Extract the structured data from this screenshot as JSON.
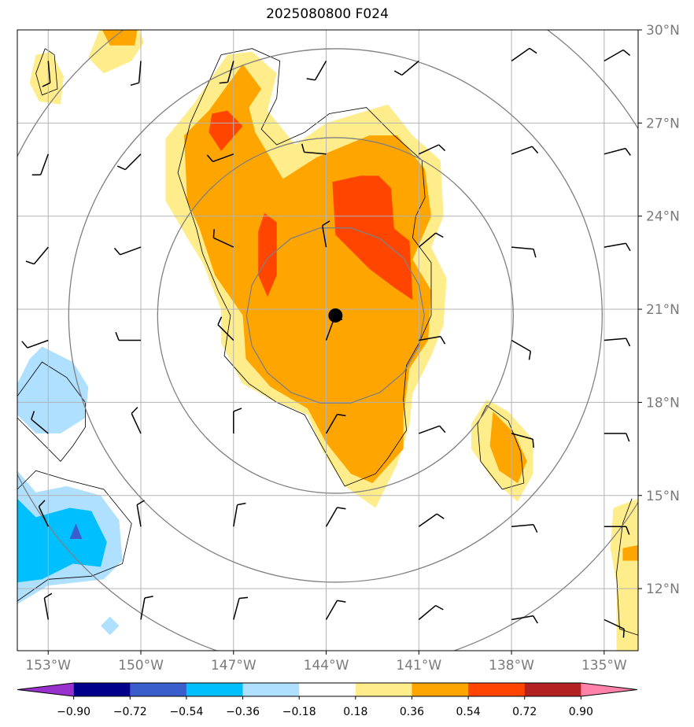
{
  "chart_data": {
    "type": "contour-map",
    "title": "2025080800 F024",
    "xlim": [
      -154,
      -133.9
    ],
    "ylim": [
      10,
      30
    ],
    "x_ticks": [
      -153,
      -150,
      -147,
      -144,
      -141,
      -138,
      -135
    ],
    "x_tick_labels": [
      "153°W",
      "150°W",
      "147°W",
      "144°W",
      "141°W",
      "138°W",
      "135°W"
    ],
    "y_ticks": [
      12,
      15,
      18,
      21,
      24,
      27,
      30
    ],
    "y_tick_labels": [
      "12°N",
      "15°N",
      "18°N",
      "21°N",
      "24°N",
      "27°N",
      "30°N"
    ],
    "grid": true,
    "storm_center": {
      "lon": -143.7,
      "lat": 20.8
    },
    "range_rings": {
      "center": {
        "lon": -143.7,
        "lat": 20.8
      },
      "count": 4
    },
    "colorbar": {
      "levels": [
        -0.9,
        -0.72,
        -0.54,
        -0.36,
        -0.18,
        0.18,
        0.36,
        0.54,
        0.72,
        0.9
      ],
      "tick_labels": [
        "−0.90",
        "−0.72",
        "−0.54",
        "−0.36",
        "−0.18",
        "0.18",
        "0.36",
        "0.54",
        "0.72",
        "0.90"
      ],
      "colors": [
        "#9932cc",
        "#00008b",
        "#3a5fcd",
        "#00bfff",
        "#b0e0ff",
        "#ffffff",
        "#ffec8b",
        "#ffa500",
        "#ff4500",
        "#b22222",
        "#ff82ab"
      ],
      "extend": "both"
    },
    "filled_regions": [
      {
        "level": 0.18,
        "color": "#ffec8b",
        "lonlat": [
          [
            -147.2,
            29.2
          ],
          [
            -146.4,
            29.3
          ],
          [
            -145.6,
            28.6
          ],
          [
            -145.9,
            27.4
          ],
          [
            -145,
            26.3
          ],
          [
            -144,
            27
          ],
          [
            -142,
            27.6
          ],
          [
            -141.2,
            26.6
          ],
          [
            -140.3,
            25.8
          ],
          [
            -140.2,
            24
          ],
          [
            -140.6,
            23
          ],
          [
            -140.1,
            22
          ],
          [
            -140.2,
            20.5
          ],
          [
            -140.6,
            19.5
          ],
          [
            -141.2,
            18.3
          ],
          [
            -141.3,
            17.3
          ],
          [
            -141.7,
            16
          ],
          [
            -142.4,
            14.6
          ],
          [
            -143.4,
            15.3
          ],
          [
            -144.1,
            16.4
          ],
          [
            -144.6,
            17.6
          ],
          [
            -145.8,
            18.1
          ],
          [
            -146.7,
            18.6
          ],
          [
            -147.4,
            19.9
          ],
          [
            -147.4,
            21
          ],
          [
            -148,
            22.5
          ],
          [
            -148.5,
            23.3
          ],
          [
            -149.2,
            24.5
          ],
          [
            -149.2,
            26.5
          ],
          [
            -148.3,
            27.6
          ],
          [
            -147.2,
            29.2
          ]
        ]
      },
      {
        "level": 0.36,
        "color": "#ffa500",
        "lonlat": [
          [
            -146.7,
            28.9
          ],
          [
            -146.1,
            28.1
          ],
          [
            -146.5,
            27.5
          ],
          [
            -146.3,
            26.7
          ],
          [
            -145.4,
            25.2
          ],
          [
            -144.3,
            25.9
          ],
          [
            -142.6,
            26.6
          ],
          [
            -141.7,
            26.6
          ],
          [
            -140.8,
            25.5
          ],
          [
            -140.6,
            24
          ],
          [
            -141.2,
            22.6
          ],
          [
            -140.6,
            21.6
          ],
          [
            -140.7,
            20
          ],
          [
            -141.3,
            19.1
          ],
          [
            -141.5,
            17.6
          ],
          [
            -141.5,
            16.5
          ],
          [
            -142.5,
            15.4
          ],
          [
            -143.2,
            15.7
          ],
          [
            -144,
            16.7
          ],
          [
            -144.6,
            17.8
          ],
          [
            -145.8,
            18.5
          ],
          [
            -146.6,
            19.4
          ],
          [
            -146.7,
            20.8
          ],
          [
            -147.6,
            22.1
          ],
          [
            -148.1,
            23.6
          ],
          [
            -148.5,
            24.5
          ],
          [
            -148.6,
            26.6
          ],
          [
            -147.8,
            27.4
          ],
          [
            -146.7,
            28.9
          ]
        ]
      },
      {
        "level": 0.54,
        "color": "#ff4500",
        "lonlat": [
          [
            -143.8,
            25.1
          ],
          [
            -142.9,
            25.3
          ],
          [
            -142.3,
            25.3
          ],
          [
            -141.9,
            24.9
          ],
          [
            -141.8,
            23.6
          ],
          [
            -141.3,
            23.2
          ],
          [
            -141.2,
            21.3
          ],
          [
            -141.8,
            21.7
          ],
          [
            -142.6,
            22.3
          ],
          [
            -143.7,
            23.4
          ],
          [
            -143.8,
            25.1
          ]
        ]
      },
      {
        "level": 0.54,
        "color": "#ff4500",
        "lonlat": [
          [
            -147.2,
            27.4
          ],
          [
            -146.7,
            26.9
          ],
          [
            -147.4,
            26.1
          ],
          [
            -147.8,
            26.7
          ],
          [
            -147.7,
            27.3
          ],
          [
            -147.2,
            27.4
          ]
        ]
      },
      {
        "level": 0.54,
        "color": "#ff4500",
        "lonlat": [
          [
            -146,
            24.1
          ],
          [
            -145.6,
            23.8
          ],
          [
            -145.6,
            22.1
          ],
          [
            -145.9,
            21.4
          ],
          [
            -146.2,
            22.1
          ],
          [
            -146.2,
            23.5
          ],
          [
            -146,
            24.1
          ]
        ]
      },
      {
        "level": 0.18,
        "color": "#ffec8b",
        "lonlat": [
          [
            -151.3,
            30.1
          ],
          [
            -150.1,
            30.1
          ],
          [
            -149.9,
            29.6
          ],
          [
            -150.3,
            29
          ],
          [
            -151.2,
            28.6
          ],
          [
            -151.7,
            29.1
          ],
          [
            -151.3,
            30.1
          ]
        ]
      },
      {
        "level": 0.36,
        "color": "#ffa500",
        "lonlat": [
          [
            -151.3,
            30.1
          ],
          [
            -150.1,
            30.1
          ],
          [
            -150.2,
            29.5
          ],
          [
            -151,
            29.5
          ],
          [
            -151.3,
            30.1
          ]
        ]
      },
      {
        "level": 0.18,
        "color": "#ffec8b",
        "lonlat": [
          [
            -153.4,
            29.2
          ],
          [
            -152.9,
            29.3
          ],
          [
            -152.5,
            28.5
          ],
          [
            -152.6,
            27.6
          ],
          [
            -153.3,
            27.7
          ],
          [
            -153.6,
            28.3
          ],
          [
            -153.4,
            29.2
          ]
        ]
      },
      {
        "level": 0.18,
        "color": "#ffec8b",
        "lonlat": [
          [
            -138.8,
            18.1
          ],
          [
            -138.1,
            17.7
          ],
          [
            -137.3,
            16.8
          ],
          [
            -137.3,
            15.7
          ],
          [
            -137.8,
            14.8
          ],
          [
            -138.6,
            15.5
          ],
          [
            -139.3,
            16.5
          ],
          [
            -139.3,
            17.3
          ],
          [
            -138.8,
            18.1
          ]
        ]
      },
      {
        "level": 0.36,
        "color": "#ffa500",
        "lonlat": [
          [
            -138.6,
            17.7
          ],
          [
            -137.9,
            17
          ],
          [
            -137.5,
            16.1
          ],
          [
            -137.8,
            15.4
          ],
          [
            -138.4,
            15.8
          ],
          [
            -138.7,
            16.6
          ],
          [
            -138.6,
            17.7
          ]
        ]
      },
      {
        "level": 0.18,
        "color": "#ffec8b",
        "lonlat": [
          [
            -134.7,
            14.6
          ],
          [
            -133.9,
            14.9
          ],
          [
            -133.9,
            10
          ],
          [
            -134.6,
            10
          ],
          [
            -134.6,
            12.2
          ],
          [
            -134.8,
            13.3
          ],
          [
            -134.7,
            14.6
          ]
        ]
      },
      {
        "level": 0.36,
        "color": "#ffa500",
        "lonlat": [
          [
            -134.4,
            13.3
          ],
          [
            -133.9,
            13.4
          ],
          [
            -133.9,
            12.9
          ],
          [
            -134.4,
            12.9
          ],
          [
            -134.4,
            13.3
          ]
        ]
      },
      {
        "level": -0.18,
        "color": "#b0e0ff",
        "lonlat": [
          [
            -153.6,
            19.4
          ],
          [
            -153.2,
            19.8
          ],
          [
            -152.2,
            19.3
          ],
          [
            -151.7,
            18.5
          ],
          [
            -151.8,
            17.5
          ],
          [
            -152.6,
            17
          ],
          [
            -153.4,
            17
          ],
          [
            -154,
            17.6
          ],
          [
            -154,
            18.6
          ],
          [
            -153.6,
            19.4
          ]
        ]
      },
      {
        "level": -0.18,
        "color": "#b0e0ff",
        "lonlat": [
          [
            -154,
            15.8
          ],
          [
            -153.4,
            15.1
          ],
          [
            -152.4,
            15.3
          ],
          [
            -151.3,
            15
          ],
          [
            -150.7,
            14.2
          ],
          [
            -150.6,
            12.9
          ],
          [
            -151.2,
            12.3
          ],
          [
            -152.1,
            12.2
          ],
          [
            -153,
            12.1
          ],
          [
            -154,
            11.5
          ],
          [
            -154,
            15.8
          ]
        ]
      },
      {
        "level": -0.36,
        "color": "#00bfff",
        "lonlat": [
          [
            -154,
            14.9
          ],
          [
            -153.4,
            14.3
          ],
          [
            -152.3,
            14.6
          ],
          [
            -151.6,
            14.5
          ],
          [
            -151.1,
            13.5
          ],
          [
            -151.3,
            12.7
          ],
          [
            -152.2,
            12.8
          ],
          [
            -153.2,
            12.3
          ],
          [
            -154,
            12.2
          ],
          [
            -154,
            14.9
          ]
        ]
      },
      {
        "level": -0.54,
        "color": "#3a5fcd",
        "lonlat": [
          [
            -152.1,
            14.1
          ],
          [
            -151.9,
            13.6
          ],
          [
            -152.3,
            13.6
          ],
          [
            -152.1,
            14.1
          ]
        ]
      },
      {
        "level": -0.18,
        "color": "#b0e0ff",
        "lonlat": [
          [
            -151,
            11.1
          ],
          [
            -150.7,
            10.8
          ],
          [
            -151,
            10.5
          ],
          [
            -151.3,
            10.8
          ],
          [
            -151,
            11.1
          ]
        ]
      }
    ],
    "contour_lines": [
      {
        "level": 0.18,
        "lonlat": [
          [
            -147.4,
            29.2
          ],
          [
            -146.4,
            29.4
          ],
          [
            -145.5,
            29
          ],
          [
            -145.6,
            27.8
          ],
          [
            -146.1,
            26.8
          ],
          [
            -145.6,
            26.3
          ],
          [
            -144.7,
            26.7
          ],
          [
            -143.9,
            27.3
          ],
          [
            -142.7,
            27.5
          ],
          [
            -141.8,
            26.6
          ],
          [
            -140.9,
            25.8
          ],
          [
            -140.8,
            24.6
          ],
          [
            -141.1,
            24
          ],
          [
            -141.2,
            23.3
          ],
          [
            -140.6,
            22.5
          ],
          [
            -140.6,
            20.8
          ],
          [
            -141,
            19.9
          ],
          [
            -141.4,
            19.2
          ],
          [
            -141.5,
            18.1
          ],
          [
            -141.4,
            17.1
          ],
          [
            -142,
            16.2
          ],
          [
            -142.4,
            15.7
          ],
          [
            -143.4,
            15.3
          ],
          [
            -144.2,
            16.7
          ],
          [
            -144.7,
            17.6
          ],
          [
            -145.6,
            18
          ],
          [
            -146.5,
            18.6
          ],
          [
            -147.3,
            19.5
          ],
          [
            -147.1,
            20.8
          ],
          [
            -147.5,
            21.6
          ],
          [
            -148,
            22.8
          ],
          [
            -148.2,
            23.6
          ],
          [
            -148.8,
            25.4
          ],
          [
            -148.4,
            27
          ],
          [
            -147.4,
            29.2
          ]
        ]
      },
      {
        "level": -0.18,
        "lonlat": [
          [
            -154,
            18.2
          ],
          [
            -153.2,
            19.3
          ],
          [
            -152.4,
            18.8
          ],
          [
            -151.8,
            18
          ],
          [
            -151.8,
            17.2
          ],
          [
            -152.2,
            16.6
          ],
          [
            -152.6,
            16.1
          ],
          [
            -153.3,
            16.8
          ],
          [
            -154,
            17.5
          ]
        ]
      },
      {
        "level": -0.18,
        "lonlat": [
          [
            -154,
            15.2
          ],
          [
            -153.4,
            15.8
          ],
          [
            -152.4,
            15.5
          ],
          [
            -151.2,
            15.2
          ],
          [
            -150.3,
            14.1
          ],
          [
            -150.6,
            12.8
          ],
          [
            -151.6,
            12.4
          ],
          [
            -153,
            12.3
          ],
          [
            -154,
            11.6
          ]
        ]
      },
      {
        "level": 0.18,
        "lonlat": [
          [
            -138.8,
            17.9
          ],
          [
            -138.1,
            17.4
          ],
          [
            -137.7,
            16.4
          ],
          [
            -137.6,
            15.4
          ],
          [
            -138.3,
            15.2
          ],
          [
            -139,
            16.1
          ],
          [
            -139.1,
            17.3
          ],
          [
            -138.8,
            17.9
          ]
        ]
      },
      {
        "level": 0.18,
        "lonlat": [
          [
            -134.1,
            14.9
          ],
          [
            -134.4,
            14.1
          ],
          [
            -134.6,
            12.5
          ],
          [
            -134.5,
            10.7
          ],
          [
            -133.9,
            10.5
          ]
        ]
      },
      {
        "level": 0.18,
        "lonlat": [
          [
            -153.1,
            29.4
          ],
          [
            -152.8,
            29.2
          ],
          [
            -152.7,
            28.1
          ],
          [
            -153.2,
            27.9
          ],
          [
            -153.4,
            28.6
          ],
          [
            -153.1,
            29.4
          ]
        ]
      }
    ],
    "wind_barbs": {
      "lons": [
        -153,
        -150,
        -147,
        -144,
        -141,
        -138,
        -135
      ],
      "lats": [
        11,
        14,
        17,
        20,
        23,
        26,
        29
      ],
      "angles_deg": [
        [
          100,
          80,
          75,
          60,
          40,
          10,
          335
        ],
        [
          115,
          100,
          80,
          60,
          35,
          5,
          0
        ],
        [
          140,
          115,
          90,
          60,
          20,
          345,
          0
        ],
        [
          200,
          180,
          135,
          70,
          10,
          330,
          5
        ],
        [
          230,
          200,
          155,
          100,
          40,
          355,
          10
        ],
        [
          250,
          225,
          200,
          175,
          25,
          20,
          15
        ],
        [
          275,
          265,
          255,
          240,
          220,
          35,
          30
        ]
      ]
    }
  }
}
